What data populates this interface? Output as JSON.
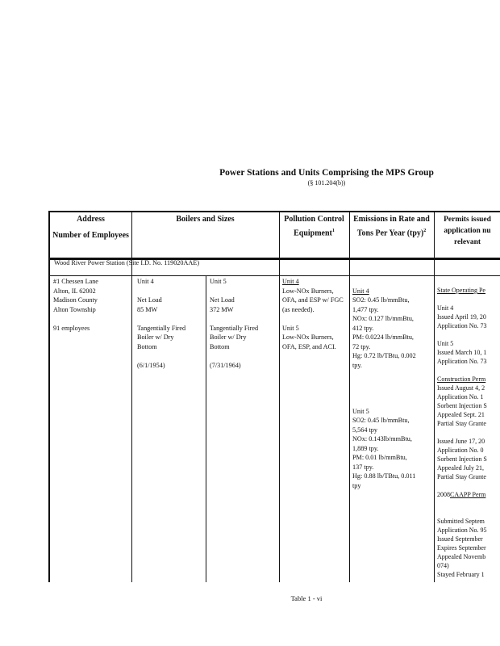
{
  "title": "Power Stations and Units Comprising the MPS Group",
  "subtitle": "(§ 101.204(b))",
  "headers": {
    "address": "Address",
    "employees": "Number of Employees",
    "boilers": "Boilers and Sizes",
    "pollution": "Pollution Control Equipment",
    "pollution_sup": "1",
    "emissions": "Emissions in Rate and Tons Per Year (tpy)",
    "emissions_sup": "2",
    "permits": "Permits issued application nu relevant"
  },
  "station": "Wood River Power Station (Site I.D. No. 119020AAE)",
  "address": "#1 Chessen Lane\nAlton, IL 62002\nMadison County\nAlton Township\n\n91 employees",
  "unit4_boiler": "Unit 4\n\nNet Load\n85 MW\n\nTangentially Fired\nBoiler w/ Dry\nBottom\n\n(6/1/1954)",
  "unit5_boiler": "Unit 5\n\nNet Load\n372 MW\n\nTangentially Fired\nBoiler w/ Dry\nBottom\n\n(7/31/1964)",
  "pollution": {
    "u4_label": "Unit 4",
    "u4": "Low-NOx Burners, OFA, and ESP w/ FGC (as needed).",
    "u5_label": "Unit 5",
    "u5": "Low-NOx Burners, OFA, ESP, and ACI."
  },
  "emissions": {
    "u4_label": "Unit 4",
    "u4": "SO2: 0.45 lb/mmBtu,\n1,477 tpy.\nNOx: 0.127 lb/mmBtu,\n412 tpy.\nPM: 0.0224 lb/mmBtu,\n72 tpy.\nHg: 0.72 lb/TBtu, 0.002\ntpy.",
    "u5_label": "Unit 5",
    "u5": "SO2: 0.45 lb/mmBtu,\n5,564 tpy\nNOx: 0.143lb/mmBtu,\n1,889 tpy.\nPM: 0.01 lb/mmBtu,\n137 tpy.\nHg: 0.88 lb/TBtu, 0.011\ntpy"
  },
  "permits": {
    "state_label": "State Operating Pe",
    "state": "\nUnit 4\nIssued April 19, 20\nApplication No. 73\n\nUnit 5\nIssued March 10, 1\nApplication No. 73\n",
    "construction_label": "Construction Perm",
    "construction": "Issued August 4, 2\nApplication No. 1\nSorbent Injection S\nAppealed Sept. 21\nPartial Stay Grante\n\nIssued June 17, 20\nApplication No. 0\nSorbent Injection S\nAppealed July 21,\nPartial Stay Grante",
    "caapp_prefix": "2008",
    "caapp_label": "CAAPP Perm",
    "caapp": "\nSubmitted Septem\nApplication No. 95\nIssued September\nExpires September\nAppealed Novemb\n074)\nStayed February 1"
  },
  "footer": "Table 1 - vi"
}
